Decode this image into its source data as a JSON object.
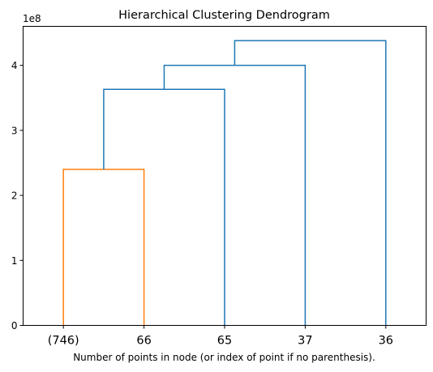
{
  "chart_data": {
    "type": "dendrogram",
    "title": "Hierarchical Clustering Dendrogram",
    "xlabel": "Number of points in node (or index of point if no parenthesis).",
    "ylabel": "",
    "y_offset_label": "1e8",
    "y_scale": 100000000,
    "ylim": [
      0,
      4.6
    ],
    "yticks": [
      0,
      1,
      2,
      3,
      4
    ],
    "leaves": [
      "(746)",
      "66",
      "65",
      "37",
      "36"
    ],
    "links": [
      {
        "left": 0,
        "right": 1,
        "height": 2.4,
        "color": "#ff7f0e"
      },
      {
        "left": "link0",
        "right": 2,
        "height": 3.63,
        "color": "#1f77b4"
      },
      {
        "left": "link1",
        "right": 3,
        "height": 4.0,
        "color": "#1f77b4"
      },
      {
        "left": "link2",
        "right": 4,
        "height": 4.38,
        "color": "#1f77b4"
      }
    ],
    "grid": false,
    "colors": {
      "cluster": "#ff7f0e",
      "above_threshold": "#1f77b4",
      "axes": "#000000"
    }
  }
}
